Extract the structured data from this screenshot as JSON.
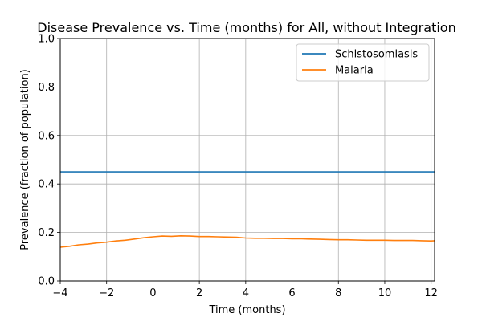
{
  "chart_data": {
    "type": "line",
    "title": "Disease Prevalence vs. Time (months) for All, without Integration",
    "xlabel": "Time (months)",
    "ylabel": "Prevalence (fraction of population)",
    "xlim": [
      -4,
      12.15
    ],
    "ylim": [
      0.0,
      1.0
    ],
    "x_ticks": [
      -4,
      -2,
      0,
      2,
      4,
      6,
      8,
      10,
      12
    ],
    "y_ticks": [
      0.0,
      0.2,
      0.4,
      0.6,
      0.8,
      1.0
    ],
    "x_tick_labels": [
      "−4",
      "−2",
      "0",
      "2",
      "4",
      "6",
      "8",
      "10",
      "12"
    ],
    "y_tick_labels": [
      "0.0",
      "0.2",
      "0.4",
      "0.6",
      "0.8",
      "1.0"
    ],
    "grid": true,
    "legend_position": "top-right",
    "colors": {
      "Schistosomiasis": "#1f77b4",
      "Malaria": "#ff7f0e"
    },
    "series": [
      {
        "name": "Schistosomiasis",
        "x": [
          -4,
          12.15
        ],
        "y": [
          0.45,
          0.45
        ]
      },
      {
        "name": "Malaria",
        "x": [
          -4,
          -3.6,
          -3.2,
          -2.8,
          -2.4,
          -2.0,
          -1.6,
          -1.2,
          -0.8,
          -0.4,
          0.0,
          0.4,
          0.8,
          1.2,
          1.6,
          2.0,
          2.4,
          2.8,
          3.2,
          3.6,
          4.0,
          4.4,
          4.8,
          5.2,
          5.6,
          6.0,
          6.4,
          6.8,
          7.2,
          7.6,
          8.0,
          8.4,
          8.8,
          9.2,
          9.6,
          10.0,
          10.4,
          10.8,
          11.2,
          11.6,
          12.0,
          12.15
        ],
        "y": [
          0.139,
          0.143,
          0.149,
          0.152,
          0.157,
          0.16,
          0.165,
          0.168,
          0.173,
          0.178,
          0.182,
          0.185,
          0.184,
          0.186,
          0.185,
          0.183,
          0.183,
          0.182,
          0.181,
          0.18,
          0.177,
          0.176,
          0.176,
          0.175,
          0.175,
          0.174,
          0.174,
          0.173,
          0.172,
          0.171,
          0.17,
          0.17,
          0.169,
          0.168,
          0.168,
          0.168,
          0.167,
          0.167,
          0.167,
          0.166,
          0.165,
          0.166
        ]
      }
    ]
  }
}
